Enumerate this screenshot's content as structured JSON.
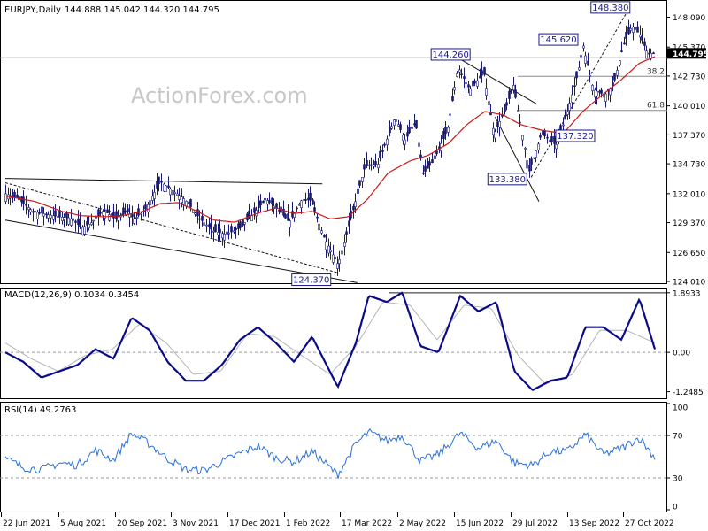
{
  "header": {
    "symbol": "EURJPY,Daily",
    "ohlc": "144.888 145.042 144.320 144.795"
  },
  "watermark": "ActionForex.com",
  "macd_header": "MACD(12,26,9) 0.1034 0.3454",
  "rsi_header": "RSI(14) 49.2763",
  "colors": {
    "candle": "#1a1a6e",
    "ma": "#d01818",
    "macd": "#0b0b8a",
    "signal": "#b4b4b4",
    "rsi": "#2a6fdc",
    "grid": "#777777"
  },
  "chart_data": [
    {
      "type": "candlestick",
      "title": "EURJPY,Daily",
      "ylim": [
        124.01,
        149.5
      ],
      "y_ticks": [
        "148.090",
        "145.370",
        "142.730",
        "140.010",
        "137.370",
        "134.730",
        "132.010",
        "129.370",
        "126.650",
        "124.010"
      ],
      "current_price_label": "144.795",
      "current_price": 144.795,
      "x_tick_labels": [
        "22 Jun 2021",
        "5 Aug 2021",
        "20 Sep 2021",
        "3 Nov 2021",
        "17 Dec 2021",
        "1 Feb 2022",
        "17 Mar 2022",
        "2 May 2022",
        "15 Jun 2022",
        "29 Jul 2022",
        "13 Sep 2022",
        "27 Oct 2022"
      ],
      "annotations": [
        {
          "text": "148.380",
          "value": 148.38,
          "date": "2022-10-21"
        },
        {
          "text": "145.620",
          "value": 145.62,
          "date": "2022-09-12"
        },
        {
          "text": "144.260",
          "value": 144.26,
          "date": "2022-06-08"
        },
        {
          "text": "137.320",
          "value": 137.32,
          "date": "2022-09-01"
        },
        {
          "text": "133.380",
          "value": 133.38,
          "date": "2022-08-02"
        },
        {
          "text": "124.370",
          "value": 124.37,
          "date": "2022-03-07"
        }
      ],
      "fib_levels": [
        {
          "label": "38.2",
          "value": 142.7
        },
        {
          "label": "61.8",
          "value": 139.6
        }
      ],
      "horizontal_level": 144.4,
      "close_path": [
        [
          "2021-06-22",
          132.0
        ],
        [
          "2021-07-01",
          131.6
        ],
        [
          "2021-07-13",
          130.4
        ],
        [
          "2021-07-21",
          130.2
        ],
        [
          "2021-08-02",
          129.9
        ],
        [
          "2021-08-11",
          129.8
        ],
        [
          "2021-08-20",
          128.9
        ],
        [
          "2021-08-27",
          129.3
        ],
        [
          "2021-09-06",
          130.5
        ],
        [
          "2021-09-15",
          129.7
        ],
        [
          "2021-09-24",
          130.4
        ],
        [
          "2021-09-30",
          129.7
        ],
        [
          "2021-10-08",
          130.5
        ],
        [
          "2021-10-20",
          133.1
        ],
        [
          "2021-10-27",
          132.5
        ],
        [
          "2021-11-08",
          131.5
        ],
        [
          "2021-11-19",
          129.8
        ],
        [
          "2021-11-30",
          128.6
        ],
        [
          "2021-12-10",
          128.3
        ],
        [
          "2021-12-21",
          128.9
        ],
        [
          "2021-12-31",
          130.2
        ],
        [
          "2022-01-10",
          131.5
        ],
        [
          "2022-01-20",
          130.5
        ],
        [
          "2022-01-28",
          129.4
        ],
        [
          "2022-02-07",
          131.5
        ],
        [
          "2022-02-14",
          131.4
        ],
        [
          "2022-02-24",
          128.0
        ],
        [
          "2022-03-07",
          125.5
        ],
        [
          "2022-03-15",
          129.0
        ],
        [
          "2022-03-28",
          134.5
        ],
        [
          "2022-04-07",
          134.7
        ],
        [
          "2022-04-20",
          139.0
        ],
        [
          "2022-04-28",
          136.9
        ],
        [
          "2022-05-06",
          138.5
        ],
        [
          "2022-05-12",
          133.8
        ],
        [
          "2022-05-20",
          135.0
        ],
        [
          "2022-05-31",
          137.9
        ],
        [
          "2022-06-08",
          143.5
        ],
        [
          "2022-06-17",
          141.5
        ],
        [
          "2022-06-28",
          143.0
        ],
        [
          "2022-07-06",
          137.4
        ],
        [
          "2022-07-15",
          139.8
        ],
        [
          "2022-07-21",
          141.9
        ],
        [
          "2022-08-02",
          134.0
        ],
        [
          "2022-08-12",
          137.5
        ],
        [
          "2022-08-23",
          136.4
        ],
        [
          "2022-09-01",
          139.5
        ],
        [
          "2022-09-09",
          143.0
        ],
        [
          "2022-09-13",
          145.6
        ],
        [
          "2022-09-21",
          141.5
        ],
        [
          "2022-09-30",
          141.0
        ],
        [
          "2022-10-07",
          142.0
        ],
        [
          "2022-10-14",
          145.5
        ],
        [
          "2022-10-21",
          147.3
        ],
        [
          "2022-10-27",
          146.5
        ],
        [
          "2022-11-02",
          144.8
        ],
        [
          "2022-11-08",
          144.795
        ]
      ],
      "ma_path": [
        [
          "2021-06-22",
          131.8
        ],
        [
          "2021-07-15",
          131.3
        ],
        [
          "2021-08-05",
          130.4
        ],
        [
          "2021-08-20",
          130.0
        ],
        [
          "2021-09-06",
          129.9
        ],
        [
          "2021-09-20",
          130.0
        ],
        [
          "2021-10-07",
          130.4
        ],
        [
          "2021-10-20",
          131.1
        ],
        [
          "2021-11-03",
          131.2
        ],
        [
          "2021-11-18",
          130.4
        ],
        [
          "2021-12-01",
          129.6
        ],
        [
          "2021-12-17",
          129.4
        ],
        [
          "2022-01-03",
          130.2
        ],
        [
          "2022-01-18",
          130.7
        ],
        [
          "2022-02-01",
          130.2
        ],
        [
          "2022-02-15",
          130.4
        ],
        [
          "2022-03-01",
          129.7
        ],
        [
          "2022-03-15",
          129.9
        ],
        [
          "2022-03-30",
          131.5
        ],
        [
          "2022-04-15",
          133.9
        ],
        [
          "2022-05-02",
          135.0
        ],
        [
          "2022-05-16",
          135.5
        ],
        [
          "2022-06-01",
          136.6
        ],
        [
          "2022-06-15",
          138.3
        ],
        [
          "2022-06-29",
          139.5
        ],
        [
          "2022-07-13",
          139.2
        ],
        [
          "2022-07-27",
          138.3
        ],
        [
          "2022-08-12",
          137.8
        ],
        [
          "2022-08-29",
          137.5
        ],
        [
          "2022-09-13",
          139.5
        ],
        [
          "2022-09-28",
          141.0
        ],
        [
          "2022-10-12",
          142.3
        ],
        [
          "2022-10-27",
          143.9
        ],
        [
          "2022-11-08",
          144.5
        ]
      ],
      "trendlines": [
        {
          "from": [
            "2021-06-22",
            133.4
          ],
          "to": [
            "2022-02-23",
            132.9
          ],
          "style": "solid"
        },
        {
          "from": [
            "2021-06-22",
            129.6
          ],
          "to": [
            "2022-03-22",
            123.9
          ],
          "style": "solid"
        },
        {
          "from": [
            "2021-06-22",
            133.0
          ],
          "to": [
            "2022-03-07",
            124.8
          ],
          "style": "dashed"
        },
        {
          "from": [
            "2022-06-08",
            144.4
          ],
          "to": [
            "2022-08-08",
            140.2
          ],
          "style": "solid"
        },
        {
          "from": [
            "2022-07-07",
            139.0
          ],
          "to": [
            "2022-08-10",
            131.3
          ],
          "style": "solid"
        },
        {
          "from": [
            "2022-08-04",
            133.5
          ],
          "to": [
            "2022-10-17",
            148.5
          ],
          "style": "dashed"
        }
      ]
    },
    {
      "type": "line",
      "title": "MACD(12,26,9) 0.1034 0.3454",
      "ylim": [
        -1.4,
        2.0
      ],
      "y_ticks": [
        "1.8933",
        "0.00",
        "-1.2485"
      ],
      "series": [
        {
          "name": "MACD",
          "values": [
            [
              "2021-06-22",
              0.0
            ],
            [
              "2021-07-06",
              -0.3
            ],
            [
              "2021-07-20",
              -0.8
            ],
            [
              "2021-08-03",
              -0.6
            ],
            [
              "2021-08-17",
              -0.4
            ],
            [
              "2021-08-31",
              0.1
            ],
            [
              "2021-09-14",
              -0.2
            ],
            [
              "2021-09-28",
              1.1
            ],
            [
              "2021-10-12",
              0.7
            ],
            [
              "2021-10-26",
              -0.3
            ],
            [
              "2021-11-09",
              -0.9
            ],
            [
              "2021-11-23",
              -0.9
            ],
            [
              "2021-12-07",
              -0.4
            ],
            [
              "2021-12-21",
              0.4
            ],
            [
              "2022-01-04",
              0.8
            ],
            [
              "2022-01-18",
              0.3
            ],
            [
              "2022-02-01",
              -0.3
            ],
            [
              "2022-02-15",
              0.5
            ],
            [
              "2022-03-07",
              -1.1
            ],
            [
              "2022-03-21",
              0.3
            ],
            [
              "2022-03-31",
              1.8
            ],
            [
              "2022-04-14",
              1.6
            ],
            [
              "2022-04-26",
              1.9
            ],
            [
              "2022-05-10",
              0.2
            ],
            [
              "2022-05-24",
              0.0
            ],
            [
              "2022-06-10",
              1.8
            ],
            [
              "2022-06-24",
              1.3
            ],
            [
              "2022-07-08",
              1.6
            ],
            [
              "2022-07-22",
              -0.6
            ],
            [
              "2022-08-05",
              -1.2
            ],
            [
              "2022-08-19",
              -0.9
            ],
            [
              "2022-09-01",
              -0.8
            ],
            [
              "2022-09-15",
              0.8
            ],
            [
              "2022-09-29",
              0.8
            ],
            [
              "2022-10-13",
              0.4
            ],
            [
              "2022-10-27",
              1.7
            ],
            [
              "2022-11-08",
              0.1
            ]
          ]
        },
        {
          "name": "Signal",
          "values": [
            [
              "2021-06-22",
              0.3
            ],
            [
              "2021-07-12",
              -0.2
            ],
            [
              "2021-08-02",
              -0.6
            ],
            [
              "2021-08-23",
              -0.1
            ],
            [
              "2021-09-13",
              0.1
            ],
            [
              "2021-10-04",
              0.9
            ],
            [
              "2021-10-25",
              0.3
            ],
            [
              "2021-11-15",
              -0.7
            ],
            [
              "2021-12-06",
              -0.6
            ],
            [
              "2021-12-27",
              0.6
            ],
            [
              "2022-01-17",
              0.5
            ],
            [
              "2022-02-07",
              -0.1
            ],
            [
              "2022-03-01",
              -0.7
            ],
            [
              "2022-03-21",
              0.2
            ],
            [
              "2022-04-11",
              1.6
            ],
            [
              "2022-05-02",
              1.5
            ],
            [
              "2022-05-23",
              0.4
            ],
            [
              "2022-06-13",
              1.5
            ],
            [
              "2022-07-04",
              1.4
            ],
            [
              "2022-07-25",
              -0.1
            ],
            [
              "2022-08-15",
              -1.0
            ],
            [
              "2022-09-05",
              -0.7
            ],
            [
              "2022-09-26",
              0.7
            ],
            [
              "2022-10-17",
              0.7
            ],
            [
              "2022-11-08",
              0.3
            ]
          ]
        }
      ]
    },
    {
      "type": "line",
      "title": "RSI(14) 49.2763",
      "ylim": [
        0,
        100
      ],
      "y_ticks": [
        "100",
        "70",
        "30",
        "0"
      ],
      "series": [
        {
          "name": "RSI",
          "values": [
            [
              "2021-06-22",
              48
            ],
            [
              "2021-07-06",
              40
            ],
            [
              "2021-07-20",
              38
            ],
            [
              "2021-08-03",
              44
            ],
            [
              "2021-08-17",
              42
            ],
            [
              "2021-08-31",
              56
            ],
            [
              "2021-09-14",
              47
            ],
            [
              "2021-09-28",
              72
            ],
            [
              "2021-10-12",
              62
            ],
            [
              "2021-10-26",
              48
            ],
            [
              "2021-11-09",
              38
            ],
            [
              "2021-11-23",
              37
            ],
            [
              "2021-12-07",
              45
            ],
            [
              "2021-12-21",
              53
            ],
            [
              "2022-01-04",
              60
            ],
            [
              "2022-01-18",
              49
            ],
            [
              "2022-02-01",
              45
            ],
            [
              "2022-02-15",
              55
            ],
            [
              "2022-03-07",
              33
            ],
            [
              "2022-03-21",
              62
            ],
            [
              "2022-03-31",
              73
            ],
            [
              "2022-04-14",
              65
            ],
            [
              "2022-04-26",
              70
            ],
            [
              "2022-05-10",
              46
            ],
            [
              "2022-05-24",
              52
            ],
            [
              "2022-06-10",
              72
            ],
            [
              "2022-06-24",
              58
            ],
            [
              "2022-07-08",
              65
            ],
            [
              "2022-07-22",
              44
            ],
            [
              "2022-08-05",
              42
            ],
            [
              "2022-08-19",
              55
            ],
            [
              "2022-09-01",
              55
            ],
            [
              "2022-09-15",
              71
            ],
            [
              "2022-09-29",
              52
            ],
            [
              "2022-10-13",
              58
            ],
            [
              "2022-10-27",
              68
            ],
            [
              "2022-11-08",
              49
            ]
          ]
        }
      ]
    }
  ]
}
